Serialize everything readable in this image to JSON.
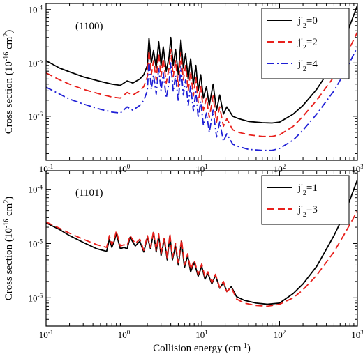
{
  "chart_data": [
    {
      "type": "line",
      "panel_label": "(1100)",
      "ylabel": "Cross section (10^-16 cm^2)",
      "xlabel": "",
      "xscale": "log",
      "yscale": "log",
      "xlim": [
        0.1,
        1000
      ],
      "ylim": [
        1.5e-07,
        0.00013
      ],
      "legend_position": "top-right",
      "series": [
        {
          "name": "j'2=0",
          "color": "#000000",
          "dash": "solid",
          "x": [
            0.1,
            0.15,
            0.2,
            0.3,
            0.5,
            0.7,
            0.9,
            1.1,
            1.3,
            1.6,
            1.8,
            2.0,
            2.1,
            2.25,
            2.4,
            2.6,
            2.8,
            3.0,
            3.2,
            3.5,
            3.8,
            4.0,
            4.3,
            4.6,
            5.0,
            5.4,
            5.8,
            6.2,
            6.7,
            7.2,
            7.8,
            8.4,
            9.0,
            9.7,
            10.5,
            11.5,
            12.5,
            14,
            15.5,
            17,
            19,
            21,
            25,
            30,
            40,
            60,
            80,
            100,
            150,
            200,
            300,
            500,
            700,
            1000
          ],
          "y": [
            1.1e-05,
            8e-06,
            6.8e-06,
            5.5e-06,
            4.5e-06,
            4e-06,
            3.8e-06,
            4.6e-06,
            4.2e-06,
            5e-06,
            6e-06,
            9e-06,
            2.9e-05,
            1e-05,
            1.7e-05,
            8e-06,
            2.5e-05,
            9e-06,
            2e-05,
            7e-06,
            1.3e-05,
            3e-05,
            9e-06,
            1.8e-05,
            6e-06,
            2.7e-05,
            8e-06,
            1.5e-05,
            5e-06,
            1.2e-05,
            4e-06,
            9e-06,
            3e-06,
            6e-06,
            2.2e-06,
            3.6e-06,
            1.6e-06,
            4e-06,
            1.3e-06,
            2.5e-06,
            1.1e-06,
            1.5e-06,
            1e-06,
            9e-07,
            8e-07,
            7.6e-07,
            7.5e-07,
            7.8e-07,
            1.1e-06,
            1.6e-06,
            3.2e-06,
            1e-05,
            3e-05,
            0.00012
          ]
        },
        {
          "name": "j'2=2",
          "color": "#e8201c",
          "dash": "dashed",
          "x": [
            0.1,
            0.15,
            0.2,
            0.3,
            0.5,
            0.7,
            0.9,
            1.1,
            1.3,
            1.6,
            1.8,
            2.0,
            2.1,
            2.25,
            2.4,
            2.6,
            2.8,
            3.0,
            3.2,
            3.5,
            3.8,
            4.0,
            4.3,
            4.6,
            5.0,
            5.4,
            5.8,
            6.2,
            6.7,
            7.2,
            7.8,
            8.4,
            9.0,
            9.7,
            10.5,
            11.5,
            12.5,
            14,
            15.5,
            17,
            19,
            21,
            25,
            30,
            40,
            60,
            80,
            100,
            150,
            200,
            300,
            500,
            700,
            1000
          ],
          "y": [
            6.5e-06,
            4.8e-06,
            4e-06,
            3.2e-06,
            2.6e-06,
            2.3e-06,
            2.2e-06,
            2.8e-06,
            2.5e-06,
            3e-06,
            3.6e-06,
            5.5e-06,
            1.7e-05,
            6e-06,
            1.1e-05,
            4.8e-06,
            1.5e-05,
            5.5e-06,
            1.2e-05,
            4.2e-06,
            8e-06,
            1.8e-05,
            5.5e-06,
            1.1e-05,
            3.6e-06,
            1.6e-05,
            4.8e-06,
            9e-06,
            3e-06,
            7e-06,
            2.4e-06,
            5.4e-06,
            1.8e-06,
            3.6e-06,
            1.3e-06,
            2.2e-06,
            9.5e-07,
            2.4e-06,
            7.8e-07,
            1.5e-06,
            6.5e-07,
            9e-07,
            5.6e-07,
            5e-07,
            4.5e-07,
            4.2e-07,
            4.2e-07,
            4.5e-07,
            6.5e-07,
            1e-06,
            2e-06,
            5.5e-06,
            1.3e-05,
            3.8e-05
          ]
        },
        {
          "name": "j'2=4",
          "color": "#1f1fd6",
          "dash": "dashdot",
          "x": [
            0.1,
            0.15,
            0.2,
            0.3,
            0.5,
            0.7,
            0.9,
            1.1,
            1.3,
            1.6,
            1.8,
            2.0,
            2.1,
            2.25,
            2.4,
            2.6,
            2.8,
            3.0,
            3.2,
            3.5,
            3.8,
            4.0,
            4.3,
            4.6,
            5.0,
            5.4,
            5.8,
            6.2,
            6.7,
            7.2,
            7.8,
            8.4,
            9.0,
            9.7,
            10.5,
            11.5,
            12.5,
            14,
            15.5,
            17,
            19,
            21,
            25,
            30,
            40,
            60,
            80,
            100,
            150,
            200,
            300,
            500,
            700,
            1000
          ],
          "y": [
            3.5e-06,
            2.6e-06,
            2.1e-06,
            1.7e-06,
            1.35e-06,
            1.2e-06,
            1.15e-06,
            1.5e-06,
            1.3e-06,
            1.6e-06,
            2e-06,
            3e-06,
            1.1e-05,
            3.2e-06,
            6e-06,
            2.6e-06,
            8e-06,
            3e-06,
            6.5e-06,
            2.2e-06,
            4.3e-06,
            1e-05,
            2.9e-06,
            5.8e-06,
            1.9e-06,
            8.6e-06,
            2.5e-06,
            4.8e-06,
            1.6e-06,
            3.8e-06,
            1.25e-06,
            2.9e-06,
            9.5e-07,
            1.9e-06,
            6.8e-07,
            1.15e-06,
            5e-07,
            1.3e-06,
            4.1e-07,
            7.8e-07,
            3.4e-07,
            4.7e-07,
            3e-07,
            2.7e-07,
            2.4e-07,
            2.3e-07,
            2.3e-07,
            2.5e-07,
            3.6e-07,
            5.5e-07,
            1.1e-06,
            3e-06,
            7e-06,
            2e-05
          ]
        }
      ]
    },
    {
      "type": "line",
      "panel_label": "(1101)",
      "ylabel": "Cross section (10^-16 cm^2)",
      "xlabel": "Collision energy (cm^-1)",
      "xscale": "log",
      "yscale": "log",
      "xlim": [
        0.1,
        1000
      ],
      "ylim": [
        3e-07,
        0.00022
      ],
      "legend_position": "top-right",
      "series": [
        {
          "name": "j'2=1",
          "color": "#000000",
          "dash": "solid",
          "x": [
            0.1,
            0.15,
            0.2,
            0.3,
            0.45,
            0.6,
            0.65,
            0.7,
            0.75,
            0.8,
            0.9,
            1.0,
            1.1,
            1.2,
            1.4,
            1.6,
            1.8,
            2.0,
            2.2,
            2.4,
            2.6,
            2.8,
            3.0,
            3.3,
            3.6,
            3.9,
            4.2,
            4.6,
            5.0,
            5.5,
            6.0,
            6.6,
            7.2,
            8.0,
            9.0,
            10,
            11,
            12,
            13.5,
            15,
            17,
            19,
            21,
            24,
            28,
            35,
            50,
            70,
            100,
            150,
            200,
            300,
            500,
            700,
            1000
          ],
          "y": [
            2.4e-05,
            1.8e-05,
            1.4e-05,
            1.05e-05,
            8e-06,
            7.2e-06,
            1.2e-05,
            8.5e-06,
            1.1e-05,
            1.5e-05,
            8e-06,
            8.5e-06,
            8e-06,
            1.3e-05,
            9e-06,
            1.1e-05,
            7e-06,
            1.3e-05,
            8e-06,
            1.6e-05,
            7e-06,
            1.4e-05,
            6e-06,
            1.2e-05,
            5e-06,
            1.4e-05,
            5e-06,
            9e-06,
            4e-06,
            1.1e-05,
            3.6e-06,
            6e-06,
            3e-06,
            4.5e-06,
            2.5e-06,
            3.8e-06,
            2.2e-06,
            2.8e-06,
            1.8e-06,
            2.6e-06,
            1.5e-06,
            1.9e-06,
            1.3e-06,
            1.6e-06,
            1.05e-06,
            9e-07,
            8e-07,
            7.6e-07,
            8e-07,
            1.2e-06,
            1.8e-06,
            3.8e-06,
            1.4e-05,
            3.8e-05,
            0.00015
          ]
        },
        {
          "name": "j'2=3",
          "color": "#e8201c",
          "dash": "dashed",
          "x": [
            0.1,
            0.15,
            0.2,
            0.3,
            0.45,
            0.6,
            0.65,
            0.7,
            0.75,
            0.8,
            0.9,
            1.0,
            1.1,
            1.2,
            1.4,
            1.6,
            1.8,
            2.0,
            2.2,
            2.4,
            2.6,
            2.8,
            3.0,
            3.3,
            3.6,
            3.9,
            4.2,
            4.6,
            5.0,
            5.5,
            6.0,
            6.6,
            7.2,
            8.0,
            9.0,
            10,
            11,
            12,
            13.5,
            15,
            17,
            19,
            21,
            24,
            28,
            35,
            50,
            70,
            100,
            150,
            200,
            300,
            500,
            700,
            1000
          ],
          "y": [
            2.5e-05,
            1.9e-05,
            1.55e-05,
            1.2e-05,
            9.5e-06,
            8.5e-06,
            1.4e-05,
            9.5e-06,
            1.2e-05,
            1.7e-05,
            9e-06,
            9.5e-06,
            9e-06,
            1.4e-05,
            1e-05,
            1.2e-05,
            7.5e-06,
            1.4e-05,
            8.5e-06,
            1.7e-05,
            7.5e-06,
            1.5e-05,
            6.5e-06,
            1.3e-05,
            5.5e-06,
            1.5e-05,
            5.5e-06,
            1e-05,
            4.4e-06,
            1.2e-05,
            4e-06,
            6.5e-06,
            3.3e-06,
            5e-06,
            2.7e-06,
            4.2e-06,
            2.4e-06,
            3e-06,
            1.9e-06,
            2.7e-06,
            1.55e-06,
            2e-06,
            1.3e-06,
            1.55e-06,
            9.5e-07,
            8e-07,
            7.2e-07,
            7e-07,
            7.6e-07,
            1e-06,
            1.4e-06,
            2.6e-06,
            7e-06,
            1.6e-05,
            4e-05
          ]
        }
      ]
    }
  ]
}
